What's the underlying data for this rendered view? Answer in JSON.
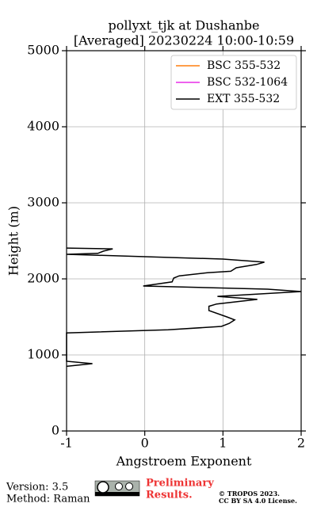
{
  "chart_data": {
    "type": "line",
    "title": [
      "pollyxt_tjk at Dushanbe",
      "[Averaged] 20230224 10:00-10:59"
    ],
    "x_label": "Angstroem Exponent",
    "y_label": "Height (m)",
    "y": [
      850,
      885,
      917,
      1290,
      1330,
      1375,
      1415,
      1460,
      1500,
      1583,
      1640,
      1670,
      1730,
      1770,
      1833,
      1865,
      1906,
      1960,
      2010,
      2040,
      2080,
      2100,
      2146,
      2190,
      2220,
      2260,
      2323,
      2335,
      2365,
      2395,
      2405
    ],
    "series": [
      {
        "name": "BSC 355-532",
        "color": "#ff7f0e",
        "values": [
          null,
          null,
          null,
          null,
          null,
          null,
          null,
          null,
          null,
          null,
          null,
          null,
          null,
          null,
          null,
          null,
          null,
          null,
          null,
          null,
          null,
          null,
          null,
          null,
          null,
          null,
          null,
          null,
          null,
          null,
          null
        ]
      },
      {
        "name": "BSC 532-1064",
        "color": "#e92de9",
        "values": [
          null,
          null,
          null,
          null,
          null,
          null,
          null,
          null,
          null,
          null,
          null,
          null,
          null,
          null,
          null,
          null,
          null,
          null,
          null,
          null,
          null,
          null,
          null,
          null,
          null,
          null,
          null,
          null,
          null,
          null,
          null
        ]
      },
      {
        "name": "EXT 355-532",
        "color": "#000000",
        "values": [
          -1,
          -0.67,
          -1,
          -1,
          0.3,
          0.98,
          1.08,
          1.15,
          1.05,
          0.82,
          0.82,
          0.92,
          1.44,
          0.93,
          2.0,
          1.57,
          -0.02,
          0.35,
          0.37,
          0.44,
          0.8,
          1.1,
          1.17,
          1.43,
          1.53,
          1.0,
          -1,
          -0.6,
          -0.53,
          -0.41,
          -1
        ]
      }
    ],
    "xlim": [
      -1,
      2
    ],
    "xticks": [
      -1,
      0,
      1,
      2
    ],
    "ylim": [
      0,
      5000
    ],
    "yticks": [
      0,
      1000,
      2000,
      3000,
      4000,
      5000
    ],
    "grid": true,
    "legend": "upper right",
    "footer": {
      "version": "Version: 3.5",
      "method": "Method: Raman",
      "status": [
        "Preliminary",
        "Results."
      ],
      "license": [
        "© TROPOS 2023.",
        "CC BY SA 4.0 License."
      ]
    }
  }
}
